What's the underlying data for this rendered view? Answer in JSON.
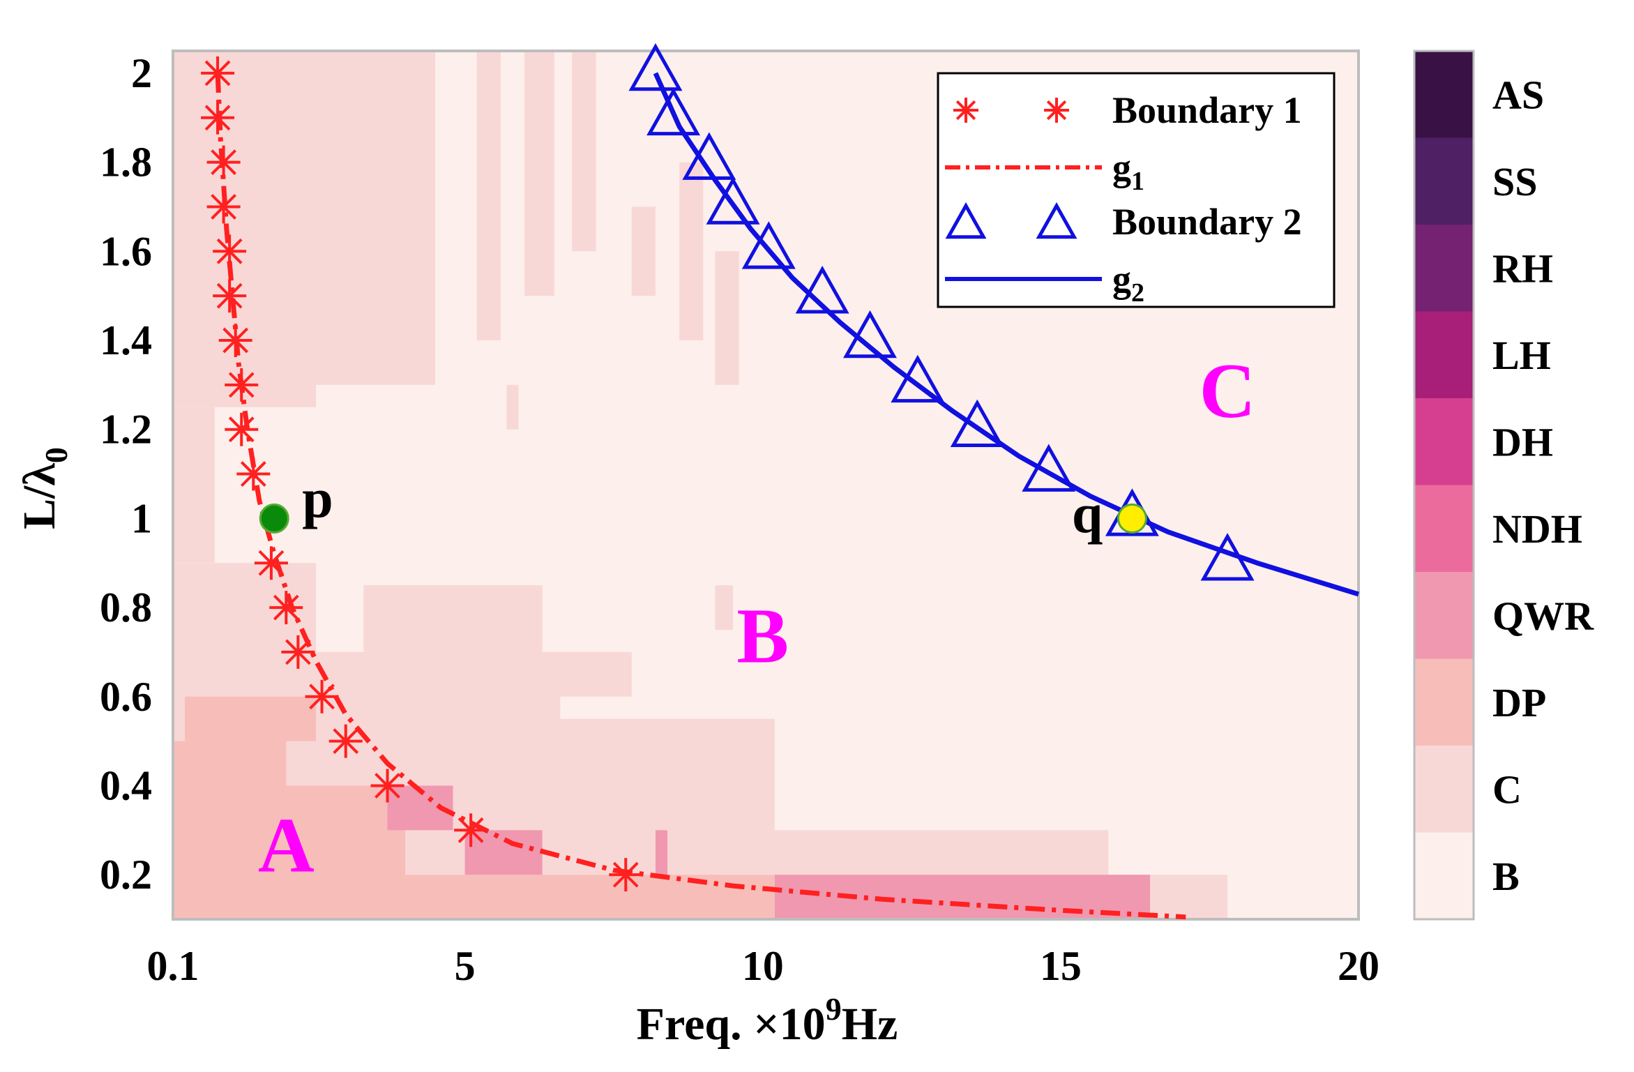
{
  "chart_data": {
    "type": "heatmap",
    "title": "",
    "xlabel": "Freq. ×10",
    "xlabel_exp": "9",
    "xlabel_unit": "Hz",
    "ylabel": "L/λ",
    "ylabel_sub": "0",
    "xlim": [
      0.1,
      20
    ],
    "ylim": [
      0.1,
      2.05
    ],
    "x_ticks": [
      {
        "value": 0.1,
        "label": "0.1"
      },
      {
        "value": 5,
        "label": "5"
      },
      {
        "value": 10,
        "label": "10"
      },
      {
        "value": 15,
        "label": "15"
      },
      {
        "value": 20,
        "label": "20"
      }
    ],
    "y_ticks": [
      {
        "value": 0.2,
        "label": "0.2"
      },
      {
        "value": 0.4,
        "label": "0.4"
      },
      {
        "value": 0.6,
        "label": "0.6"
      },
      {
        "value": 0.8,
        "label": "0.8"
      },
      {
        "value": 1.0,
        "label": "1"
      },
      {
        "value": 1.2,
        "label": "1.2"
      },
      {
        "value": 1.4,
        "label": "1.4"
      },
      {
        "value": 1.6,
        "label": "1.6"
      },
      {
        "value": 1.8,
        "label": "1.8"
      },
      {
        "value": 2.0,
        "label": "2"
      }
    ],
    "colorbar": {
      "categories": [
        "AS",
        "SS",
        "RH",
        "LH",
        "DH",
        "NDH",
        "QWR",
        "DP",
        "C",
        "B"
      ],
      "colors": [
        "#3a1145",
        "#4f2063",
        "#742271",
        "#a81f7a",
        "#d63f8f",
        "#ec6b9d",
        "#f098b0",
        "#f7bdb9",
        "#f8d8d6",
        "#fcefec"
      ]
    },
    "regions": [
      {
        "category": "B",
        "x0": 0.1,
        "x1": 20,
        "y0": 0.1,
        "y1": 2.05
      },
      {
        "category": "C",
        "x0": 0.1,
        "x1": 2.5,
        "y0": 1.25,
        "y1": 2.05
      },
      {
        "category": "C",
        "x0": 0.1,
        "x1": 0.8,
        "y0": 0.9,
        "y1": 1.25
      },
      {
        "category": "C",
        "x0": 2.5,
        "x1": 4.5,
        "y0": 1.3,
        "y1": 2.05
      },
      {
        "category": "C",
        "x0": 5.2,
        "x1": 5.6,
        "y0": 1.4,
        "y1": 2.05
      },
      {
        "category": "C",
        "x0": 6.0,
        "x1": 6.5,
        "y0": 1.5,
        "y1": 2.05
      },
      {
        "category": "C",
        "x0": 6.8,
        "x1": 7.2,
        "y0": 1.6,
        "y1": 2.05
      },
      {
        "category": "C",
        "x0": 7.8,
        "x1": 8.2,
        "y0": 1.5,
        "y1": 1.7
      },
      {
        "category": "C",
        "x0": 9.2,
        "x1": 9.6,
        "y0": 1.3,
        "y1": 1.6
      },
      {
        "category": "C",
        "x0": 8.6,
        "x1": 9.0,
        "y0": 1.4,
        "y1": 1.8
      },
      {
        "category": "C",
        "x0": 5.7,
        "x1": 5.9,
        "y0": 1.2,
        "y1": 1.3
      },
      {
        "category": "C",
        "x0": 0.1,
        "x1": 2.5,
        "y0": 0.1,
        "y1": 0.9
      },
      {
        "category": "C",
        "x0": 2.5,
        "x1": 4.8,
        "y0": 0.35,
        "y1": 0.7
      },
      {
        "category": "C",
        "x0": 2.5,
        "x1": 10.2,
        "y0": 0.2,
        "y1": 0.35
      },
      {
        "category": "C",
        "x0": 3.3,
        "x1": 6.3,
        "y0": 0.7,
        "y1": 0.85
      },
      {
        "category": "C",
        "x0": 3.6,
        "x1": 6.6,
        "y0": 0.55,
        "y1": 0.7
      },
      {
        "category": "C",
        "x0": 4.8,
        "x1": 10.2,
        "y0": 0.35,
        "y1": 0.55
      },
      {
        "category": "C",
        "x0": 6.3,
        "x1": 7.8,
        "y0": 0.6,
        "y1": 0.7
      },
      {
        "category": "C",
        "x0": 9.2,
        "x1": 9.5,
        "y0": 0.75,
        "y1": 0.85
      },
      {
        "category": "C",
        "x0": 10.2,
        "x1": 15.8,
        "y0": 0.2,
        "y1": 0.3
      },
      {
        "category": "C",
        "x0": 16.5,
        "x1": 17.8,
        "y0": 0.1,
        "y1": 0.2
      },
      {
        "category": "DP",
        "x0": 0.1,
        "x1": 2.0,
        "y0": 0.1,
        "y1": 0.5
      },
      {
        "category": "DP",
        "x0": 0.3,
        "x1": 2.5,
        "y0": 0.5,
        "y1": 0.6
      },
      {
        "category": "DP",
        "x0": 2.0,
        "x1": 4.0,
        "y0": 0.1,
        "y1": 0.4
      },
      {
        "category": "DP",
        "x0": 4.0,
        "x1": 10.2,
        "y0": 0.1,
        "y1": 0.2
      },
      {
        "category": "QWR",
        "x0": 3.7,
        "x1": 4.8,
        "y0": 0.3,
        "y1": 0.4
      },
      {
        "category": "QWR",
        "x0": 5.0,
        "x1": 6.3,
        "y0": 0.2,
        "y1": 0.3
      },
      {
        "category": "QWR",
        "x0": 8.2,
        "x1": 8.4,
        "y0": 0.2,
        "y1": 0.3
      },
      {
        "category": "QWR",
        "x0": 10.2,
        "x1": 16.5,
        "y0": 0.1,
        "y1": 0.2
      }
    ],
    "series": [
      {
        "name": "Boundary 1",
        "marker": "asterisk",
        "color": "#ff2020",
        "x": [
          0.85,
          0.85,
          0.95,
          0.95,
          1.05,
          1.05,
          1.15,
          1.25,
          1.25,
          1.45,
          1.75,
          2.0,
          2.2,
          2.6,
          3.0,
          3.7,
          5.1,
          7.7
        ],
        "y": [
          2.0,
          1.9,
          1.8,
          1.7,
          1.6,
          1.5,
          1.4,
          1.3,
          1.2,
          1.1,
          0.9,
          0.8,
          0.7,
          0.6,
          0.5,
          0.4,
          0.3,
          0.2
        ]
      },
      {
        "name": "g",
        "name_sub": "1",
        "line": "dash-dot",
        "color": "#ff2020",
        "x": [
          0.85,
          0.9,
          1.0,
          1.1,
          1.2,
          1.35,
          1.55,
          1.8,
          2.1,
          2.5,
          3.0,
          3.7,
          4.6,
          5.8,
          7.5,
          9.5,
          12.0,
          15.0,
          17.1
        ],
        "y": [
          2.0,
          1.85,
          1.65,
          1.5,
          1.35,
          1.2,
          1.04,
          0.92,
          0.8,
          0.68,
          0.56,
          0.45,
          0.35,
          0.27,
          0.21,
          0.175,
          0.145,
          0.12,
          0.105
        ]
      },
      {
        "name": "Boundary 2",
        "marker": "triangle",
        "color": "#1010e0",
        "x": [
          8.2,
          8.5,
          9.1,
          9.5,
          10.1,
          11.0,
          11.8,
          12.6,
          13.6,
          14.8,
          16.2,
          17.8
        ],
        "y": [
          2.0,
          1.9,
          1.8,
          1.7,
          1.6,
          1.5,
          1.4,
          1.3,
          1.2,
          1.1,
          1.0,
          0.9
        ]
      },
      {
        "name": "g",
        "name_sub": "2",
        "line": "solid",
        "color": "#1010e0",
        "x": [
          8.2,
          8.6,
          9.2,
          9.8,
          10.5,
          11.3,
          12.2,
          13.2,
          14.3,
          15.5,
          16.8,
          18.3,
          20.0
        ],
        "y": [
          2.0,
          1.88,
          1.76,
          1.65,
          1.54,
          1.44,
          1.34,
          1.24,
          1.14,
          1.05,
          0.97,
          0.9,
          0.83
        ]
      }
    ],
    "points": [
      {
        "label": "p",
        "x": 1.8,
        "y": 1.0,
        "color": "#0a8a0a"
      },
      {
        "label": "q",
        "x": 16.2,
        "y": 1.0,
        "color": "#ffee00"
      }
    ],
    "annotations": [
      {
        "text": "A",
        "x": 2.0,
        "y": 0.27,
        "color": "#ff00ff"
      },
      {
        "text": "B",
        "x": 10.0,
        "y": 0.74,
        "color": "#ff00ff"
      },
      {
        "text": "C",
        "x": 17.8,
        "y": 1.29,
        "color": "#ff00ff"
      }
    ],
    "legend": {
      "position": "top-right",
      "entries": [
        {
          "name": "Boundary 1",
          "sub": ""
        },
        {
          "name": "g",
          "sub": "1"
        },
        {
          "name": "Boundary 2",
          "sub": ""
        },
        {
          "name": "g",
          "sub": "2"
        }
      ]
    }
  }
}
